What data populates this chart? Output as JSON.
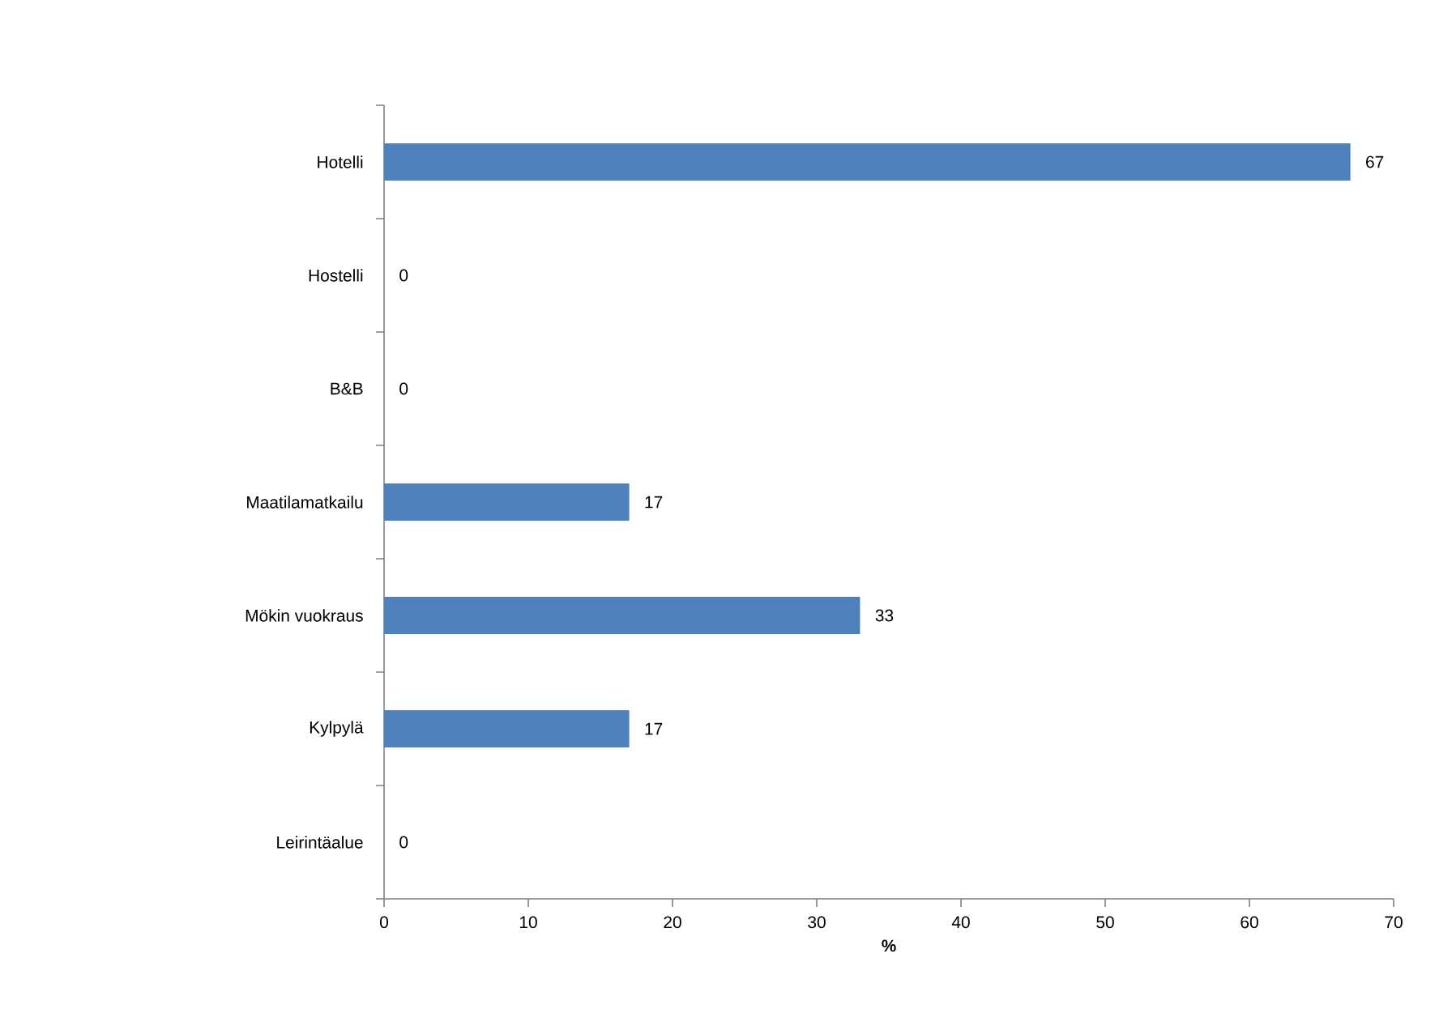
{
  "chart_data": {
    "type": "bar",
    "orientation": "horizontal",
    "xlabel": "%",
    "categories": [
      "Hotelli",
      "Hostelli",
      "B&B",
      "Maatilamatkailu",
      "Mökin vuokraus",
      "Kylpylä",
      "Leirintäalue"
    ],
    "values": [
      67,
      0,
      0,
      17,
      33,
      17,
      0
    ],
    "color": "#4f81bd",
    "xlim": [
      0,
      70
    ],
    "xticks": [
      0,
      10,
      20,
      30,
      40,
      50,
      60,
      70
    ],
    "grid": false,
    "data_labels": true
  }
}
